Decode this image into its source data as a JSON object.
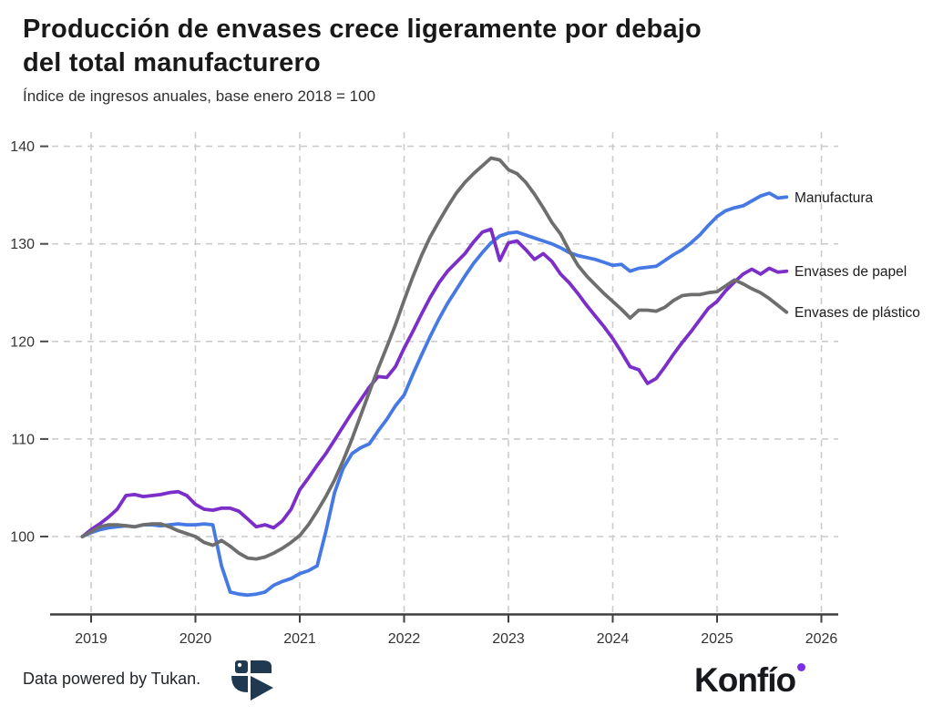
{
  "header": {
    "title": "Producción de envases crece ligeramente por debajo\ndel total manufacturero",
    "subtitle": "Índice de ingresos anuales, base enero 2018 = 100"
  },
  "footer": {
    "attribution": "Data powered by Tukan.",
    "brand": "Konfío",
    "tukan_logo_color": "#1f3a50",
    "brand_dot_color": "#7c2ee8"
  },
  "chart_data": {
    "type": "line",
    "title": "Producción de envases crece ligeramente por debajo del total manufacturero",
    "subtitle": "Índice de ingresos anuales, base enero 2018 = 100",
    "xlabel": "",
    "ylabel": "",
    "x_start": "2018-12",
    "x_end": "2025-09",
    "points_per_year": 12,
    "x_tick_labels": [
      "2019",
      "2020",
      "2021",
      "2022",
      "2023",
      "2024",
      "2025",
      "2026"
    ],
    "y_tick_labels": [
      "100",
      "110",
      "120",
      "130",
      "140"
    ],
    "y_ticks": [
      100,
      110,
      120,
      130,
      140
    ],
    "ylim": [
      93,
      141.5
    ],
    "grid": "dashed",
    "legend_position": "right-end-labels",
    "gridline_color": "#cccccc",
    "axis_color": "#3f3f3f",
    "tick_label_color": "#333333",
    "legend_text_color": "#1c1c1c",
    "series": [
      {
        "name": "Manufactura",
        "color": "#4679e4",
        "values": [
          100.0,
          100.4,
          100.7,
          100.9,
          101.0,
          101.1,
          101.0,
          101.2,
          101.2,
          101.1,
          101.2,
          101.3,
          101.2,
          101.2,
          101.3,
          101.2,
          97.0,
          94.3,
          94.1,
          94.0,
          94.1,
          94.3,
          95.0,
          95.4,
          95.7,
          96.2,
          96.5,
          97.0,
          100.5,
          104.5,
          107.0,
          108.5,
          109.1,
          109.5,
          110.8,
          112.0,
          113.4,
          114.5,
          116.6,
          118.6,
          120.5,
          122.3,
          123.9,
          125.3,
          126.7,
          128.0,
          129.1,
          130.1,
          130.8,
          131.1,
          131.2,
          130.9,
          130.6,
          130.3,
          130.0,
          129.6,
          129.1,
          128.8,
          128.6,
          128.4,
          128.1,
          127.8,
          127.9,
          127.2,
          127.5,
          127.6,
          127.7,
          128.3,
          128.9,
          129.4,
          130.1,
          130.9,
          131.9,
          132.8,
          133.4,
          133.7,
          133.9,
          134.4,
          134.9,
          135.2,
          134.7,
          134.8
        ]
      },
      {
        "name": "Envases de papel",
        "color": "#7b2ec8",
        "values": [
          100.0,
          100.7,
          101.3,
          102.0,
          102.8,
          104.2,
          104.3,
          104.1,
          104.2,
          104.3,
          104.5,
          104.6,
          104.2,
          103.3,
          102.8,
          102.7,
          102.9,
          102.9,
          102.6,
          101.8,
          101.0,
          101.2,
          100.9,
          101.6,
          102.8,
          104.8,
          106.0,
          107.3,
          108.5,
          109.9,
          111.3,
          112.7,
          114.0,
          115.3,
          116.4,
          116.3,
          117.4,
          119.3,
          121.0,
          122.8,
          124.5,
          126.0,
          127.2,
          128.1,
          129.0,
          130.2,
          131.2,
          131.5,
          128.3,
          130.1,
          130.3,
          129.4,
          128.4,
          129.0,
          128.2,
          126.9,
          126.0,
          124.9,
          123.7,
          122.6,
          121.5,
          120.3,
          118.9,
          117.4,
          117.1,
          115.7,
          116.2,
          117.4,
          118.7,
          119.9,
          121.0,
          122.2,
          123.4,
          124.1,
          125.2,
          126.1,
          126.9,
          127.4,
          126.9,
          127.5,
          127.1,
          127.2
        ]
      },
      {
        "name": "Envases de plástico",
        "color": "#6e6e6e",
        "values": [
          100.0,
          100.5,
          101.0,
          101.2,
          101.2,
          101.1,
          101.0,
          101.2,
          101.3,
          101.3,
          101.0,
          100.6,
          100.3,
          100.0,
          99.4,
          99.1,
          99.6,
          99.0,
          98.3,
          97.8,
          97.7,
          97.9,
          98.3,
          98.8,
          99.4,
          100.1,
          101.2,
          102.6,
          104.1,
          105.8,
          107.8,
          110.0,
          112.4,
          114.8,
          117.2,
          119.4,
          121.7,
          124.2,
          126.6,
          128.8,
          130.7,
          132.3,
          133.8,
          135.2,
          136.3,
          137.2,
          138.0,
          138.8,
          138.6,
          137.6,
          137.2,
          136.3,
          135.1,
          133.7,
          132.2,
          131.0,
          129.3,
          127.8,
          126.7,
          125.8,
          124.9,
          124.1,
          123.3,
          122.4,
          123.2,
          123.2,
          123.1,
          123.5,
          124.2,
          124.7,
          124.8,
          124.8,
          125.0,
          125.1,
          125.7,
          126.3,
          125.9,
          125.4,
          125.0,
          124.4,
          123.7,
          123.0
        ]
      }
    ]
  }
}
